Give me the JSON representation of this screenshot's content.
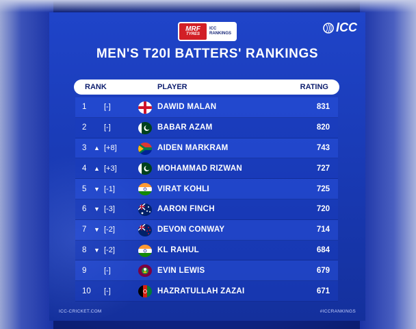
{
  "sponsor": {
    "brand": "MRF",
    "brand_sub": "TYRES",
    "line1": "ICC",
    "line2": "RANKINGS"
  },
  "logo": {
    "text": "ICC",
    "icon": "icc-emblem-icon"
  },
  "title": "MEN'S T20I BATTERS' RANKINGS",
  "table": {
    "headers": {
      "rank": "RANK",
      "player": "PLAYER",
      "rating": "RATING"
    },
    "rows": [
      {
        "rank": "1",
        "arrow": "",
        "move": "[-]",
        "flag": "england-flag-icon",
        "name": "DAWID MALAN",
        "rating": "831"
      },
      {
        "rank": "2",
        "arrow": "",
        "move": "[-]",
        "flag": "pakistan-flag-icon",
        "name": "BABAR AZAM",
        "rating": "820"
      },
      {
        "rank": "3",
        "arrow": "▲",
        "move": "[+8]",
        "flag": "south-africa-flag-icon",
        "name": "AIDEN MARKRAM",
        "rating": "743"
      },
      {
        "rank": "4",
        "arrow": "▲",
        "move": "[+3]",
        "flag": "pakistan-flag-icon",
        "name": "MOHAMMAD RIZWAN",
        "rating": "727"
      },
      {
        "rank": "5",
        "arrow": "▼",
        "move": "[-1]",
        "flag": "india-flag-icon",
        "name": "VIRAT KOHLI",
        "rating": "725"
      },
      {
        "rank": "6",
        "arrow": "▼",
        "move": "[-3]",
        "flag": "australia-flag-icon",
        "name": "AARON FINCH",
        "rating": "720"
      },
      {
        "rank": "7",
        "arrow": "▼",
        "move": "[-2]",
        "flag": "new-zealand-flag-icon",
        "name": "DEVON CONWAY",
        "rating": "714"
      },
      {
        "rank": "8",
        "arrow": "▼",
        "move": "[-2]",
        "flag": "india-flag-icon",
        "name": "KL RAHUL",
        "rating": "684"
      },
      {
        "rank": "9",
        "arrow": "",
        "move": "[-]",
        "flag": "west-indies-flag-icon",
        "name": "EVIN LEWIS",
        "rating": "679"
      },
      {
        "rank": "10",
        "arrow": "",
        "move": "[-]",
        "flag": "afghanistan-flag-icon",
        "name": "HAZRATULLAH ZAZAI",
        "rating": "671"
      }
    ]
  },
  "footer": {
    "left": "ICC-CRICKET.COM",
    "right": "#ICCRANKINGS"
  },
  "colors": {
    "background": "#1f44c9",
    "header_bg": "#ffffff",
    "header_text": "#0d1e6e",
    "sponsor_red": "#d21f26"
  }
}
